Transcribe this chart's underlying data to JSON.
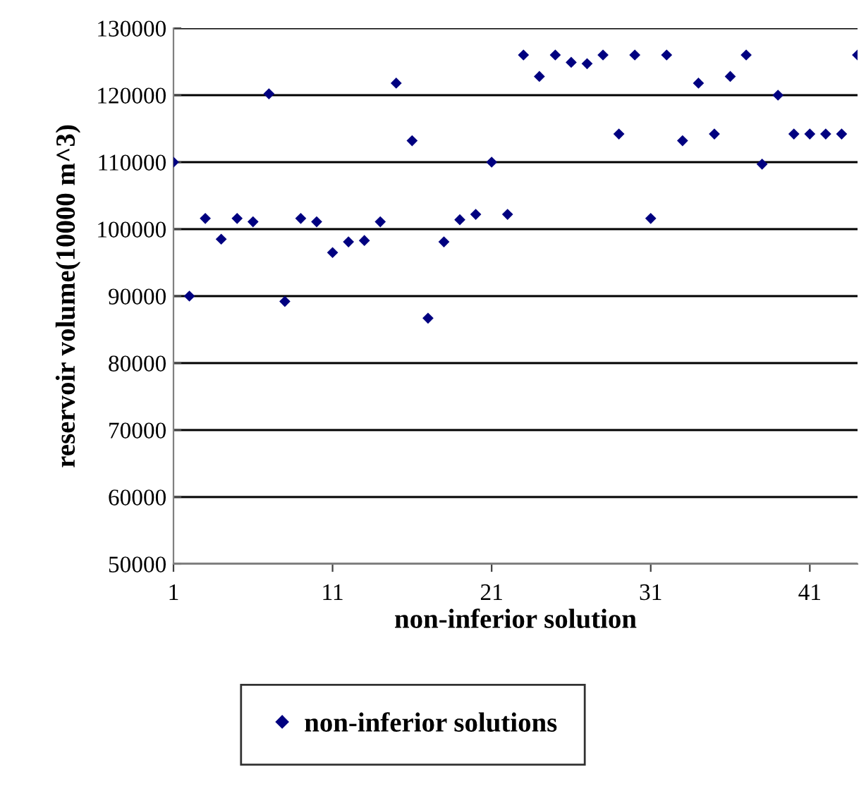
{
  "chart_data": {
    "type": "scatter",
    "xlabel": "non-inferior solution",
    "ylabel": "reservoir volume(10000 m^3)",
    "x": [
      1,
      2,
      3,
      4,
      5,
      6,
      7,
      8,
      9,
      10,
      11,
      12,
      13,
      14,
      15,
      16,
      17,
      18,
      19,
      20,
      21,
      22,
      23,
      24,
      25,
      26,
      27,
      28,
      29,
      30,
      31,
      32,
      33,
      34,
      35,
      36,
      37,
      38,
      39,
      40,
      41,
      42,
      43,
      44
    ],
    "series": [
      {
        "name": "non-inferior solutions",
        "color": "#000080",
        "values": [
          110000,
          90000,
          101600,
          98500,
          101600,
          101100,
          120200,
          89200,
          101600,
          101100,
          96500,
          98100,
          98300,
          101100,
          121800,
          113200,
          86700,
          98100,
          101400,
          102200,
          110000,
          102200,
          126000,
          122800,
          126000,
          124900,
          124700,
          126000,
          114200,
          126000,
          101600,
          126000,
          113200,
          121800,
          114200,
          122800,
          126000,
          109700,
          120000,
          114200,
          114200,
          114200,
          114200,
          126000
        ]
      }
    ],
    "xlim": [
      1,
      44
    ],
    "xticks": [
      1,
      11,
      21,
      31,
      41
    ],
    "ylim": [
      50000,
      130000
    ],
    "yticks": [
      50000,
      60000,
      70000,
      80000,
      90000,
      100000,
      110000,
      120000,
      130000
    ],
    "grid": "y",
    "legend": "bottom",
    "marker": "diamond"
  }
}
